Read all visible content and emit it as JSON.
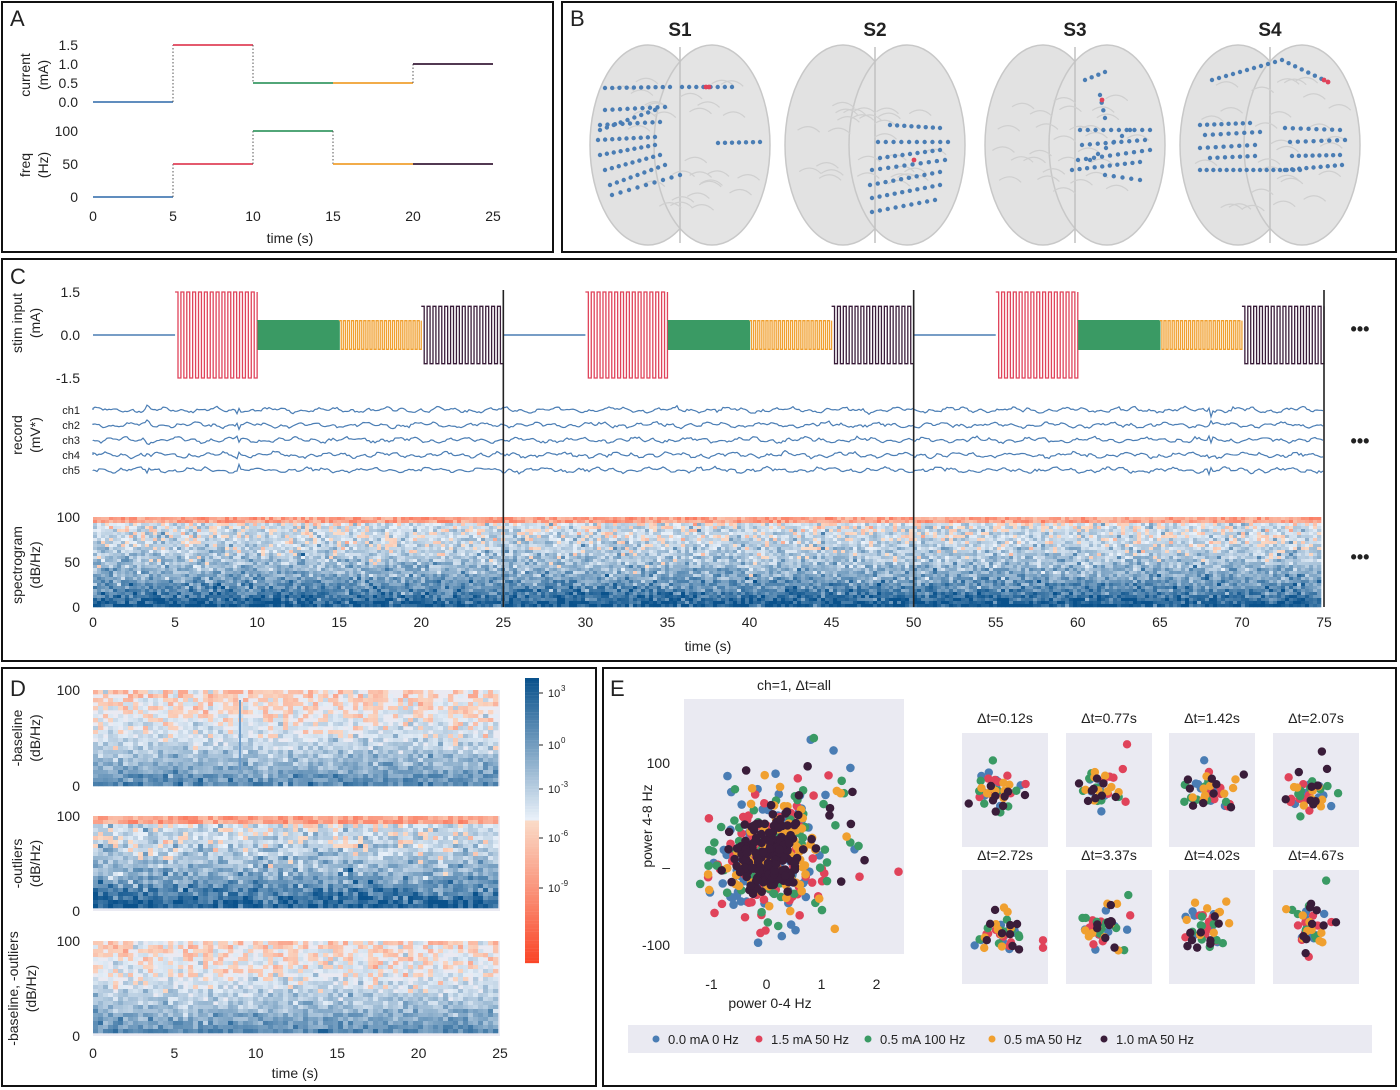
{
  "panel_labels": {
    "A": "A",
    "B": "B",
    "C": "C",
    "D": "D",
    "E": "E"
  },
  "colors": {
    "blue": "#4a7db4",
    "red": "#e0435a",
    "green": "#3a9a64",
    "orange": "#f0a030",
    "purple": "#3a1d3a",
    "bg": "#eaeaf2",
    "brain": "#dcdcdc",
    "electrode": "#4a7db4",
    "electrode_hot": "#e0435a"
  },
  "chart_data": [
    {
      "id": "A_current",
      "type": "line",
      "ylabel": "current\n(mA)",
      "ylabel_lines": [
        "current",
        "(mA)"
      ],
      "yticks": [
        "1.5",
        "1.0",
        "0.5",
        "0.0"
      ],
      "ytick_values": [
        1.5,
        1.0,
        0.5,
        0.0
      ],
      "ylim": [
        0,
        1.5
      ],
      "xlim": [
        0,
        25
      ],
      "segments": [
        {
          "x0": 0,
          "x1": 5,
          "y": 0.0,
          "color": "blue"
        },
        {
          "x0": 5,
          "x1": 10,
          "y": 1.5,
          "color": "red"
        },
        {
          "x0": 10,
          "x1": 15,
          "y": 0.5,
          "color": "green"
        },
        {
          "x0": 15,
          "x1": 20,
          "y": 0.5,
          "color": "orange"
        },
        {
          "x0": 20,
          "x1": 25,
          "y": 1.0,
          "color": "purple"
        }
      ]
    },
    {
      "id": "A_freq",
      "type": "line",
      "ylabel_lines": [
        "freq",
        "(Hz)"
      ],
      "yticks": [
        "100",
        "50",
        "0"
      ],
      "ytick_values": [
        100,
        50,
        0
      ],
      "ylim": [
        0,
        100
      ],
      "xlim": [
        0,
        25
      ],
      "xticks": [
        "0",
        "5",
        "10",
        "15",
        "20",
        "25"
      ],
      "xtick_values": [
        0,
        5,
        10,
        15,
        20,
        25
      ],
      "xlabel": "time (s)",
      "segments": [
        {
          "x0": 0,
          "x1": 5,
          "y": 0,
          "color": "blue"
        },
        {
          "x0": 5,
          "x1": 10,
          "y": 50,
          "color": "red"
        },
        {
          "x0": 10,
          "x1": 15,
          "y": 100,
          "color": "green"
        },
        {
          "x0": 15,
          "x1": 20,
          "y": 50,
          "color": "orange"
        },
        {
          "x0": 20,
          "x1": 25,
          "y": 50,
          "color": "purple"
        }
      ]
    },
    {
      "id": "C_stim",
      "type": "line",
      "ylabel_lines": [
        "stim input",
        "(mA)"
      ],
      "yticks": [
        "1.5",
        "0.0",
        "-1.5"
      ],
      "ytick_values": [
        1.5,
        0.0,
        -1.5
      ],
      "ylim": [
        -1.5,
        1.5
      ],
      "xlim": [
        0,
        75
      ],
      "block_amplitudes": [
        {
          "x0": 0,
          "x1": 5,
          "amp": 0.0,
          "color": "blue",
          "cycles": 0
        },
        {
          "x0": 5,
          "x1": 10,
          "amp": 1.5,
          "color": "red",
          "cycles": 14
        },
        {
          "x0": 10,
          "x1": 15,
          "amp": 0.5,
          "color": "green",
          "cycles": 40
        },
        {
          "x0": 15,
          "x1": 20,
          "amp": 0.5,
          "color": "orange",
          "cycles": 20
        },
        {
          "x0": 20,
          "x1": 25,
          "amp": 1.0,
          "color": "purple",
          "cycles": 14
        }
      ],
      "separators": [
        25,
        50,
        75
      ]
    },
    {
      "id": "C_record",
      "type": "line",
      "ylabel_lines": [
        "record",
        "(mV*)"
      ],
      "channels": [
        "ch1",
        "ch2",
        "ch3",
        "ch4",
        "ch5"
      ],
      "xlim": [
        0,
        75
      ],
      "separators": [
        25,
        50,
        75
      ]
    },
    {
      "id": "C_spectrogram",
      "type": "heatmap",
      "ylabel_lines": [
        "spectrogram",
        "(dB/Hz)"
      ],
      "yticks": [
        "100",
        "50",
        "0"
      ],
      "ytick_values": [
        100,
        50,
        0
      ],
      "xticks": [
        "0",
        "5",
        "10",
        "15",
        "20",
        "25",
        "30",
        "35",
        "40",
        "45",
        "50",
        "55",
        "60",
        "65",
        "70",
        "75"
      ],
      "xtick_values": [
        0,
        5,
        10,
        15,
        20,
        25,
        30,
        35,
        40,
        45,
        50,
        55,
        60,
        65,
        70,
        75
      ],
      "xlabel": "time (s)",
      "xlim": [
        0,
        75
      ],
      "ylim": [
        0,
        100
      ],
      "separators": [
        25,
        50,
        75
      ]
    },
    {
      "id": "D_heatmaps",
      "type": "heatmap",
      "rows": [
        {
          "ylabel_lines": [
            "-baseline",
            "(dB/Hz)"
          ]
        },
        {
          "ylabel_lines": [
            "-outliers",
            "(dB/Hz)"
          ]
        },
        {
          "ylabel_lines": [
            "-baseline, -outliers",
            "(dB/Hz)"
          ]
        }
      ],
      "yticks": [
        "100",
        "0"
      ],
      "ytick_values": [
        100,
        0
      ],
      "xticks": [
        "0",
        "5",
        "10",
        "15",
        "20",
        "25"
      ],
      "xtick_values": [
        0,
        5,
        10,
        15,
        20,
        25
      ],
      "xlabel": "time (s)",
      "xlim": [
        0,
        25
      ],
      "colorbar_ticks": [
        "10^3",
        "10^0",
        "10^-3",
        "10^-6",
        "10^-9"
      ]
    },
    {
      "id": "E_main",
      "type": "scatter",
      "title": "ch=1, Δt=all",
      "xlabel": "power 0-4 Hz",
      "ylabel": "power 4-8 Hz",
      "xticks": [
        "-1",
        "0",
        "1",
        "2"
      ],
      "xtick_values": [
        -1,
        0,
        1,
        2
      ],
      "yticks": [
        "100",
        "-100"
      ],
      "ytick_values": [
        100,
        -100
      ],
      "xlim": [
        -1.5,
        2.5
      ],
      "ylim": [
        -110,
        170
      ]
    },
    {
      "id": "E_small",
      "type": "scatter",
      "titles": [
        "Δt=0.12s",
        "Δt=0.77s",
        "Δt=1.42s",
        "Δt=2.07s",
        "Δt=2.72s",
        "Δt=3.37s",
        "Δt=4.02s",
        "Δt=4.67s"
      ]
    }
  ],
  "legend": [
    {
      "label": "0.0 mA 0 Hz",
      "color": "blue"
    },
    {
      "label": "1.5 mA 50 Hz",
      "color": "red"
    },
    {
      "label": "0.5 mA 100 Hz",
      "color": "green"
    },
    {
      "label": "0.5 mA 50 Hz",
      "color": "orange"
    },
    {
      "label": "1.0 mA 50 Hz",
      "color": "purple"
    }
  ],
  "brains": [
    "S1",
    "S2",
    "S3",
    "S4"
  ],
  "ellipsis": "•••"
}
